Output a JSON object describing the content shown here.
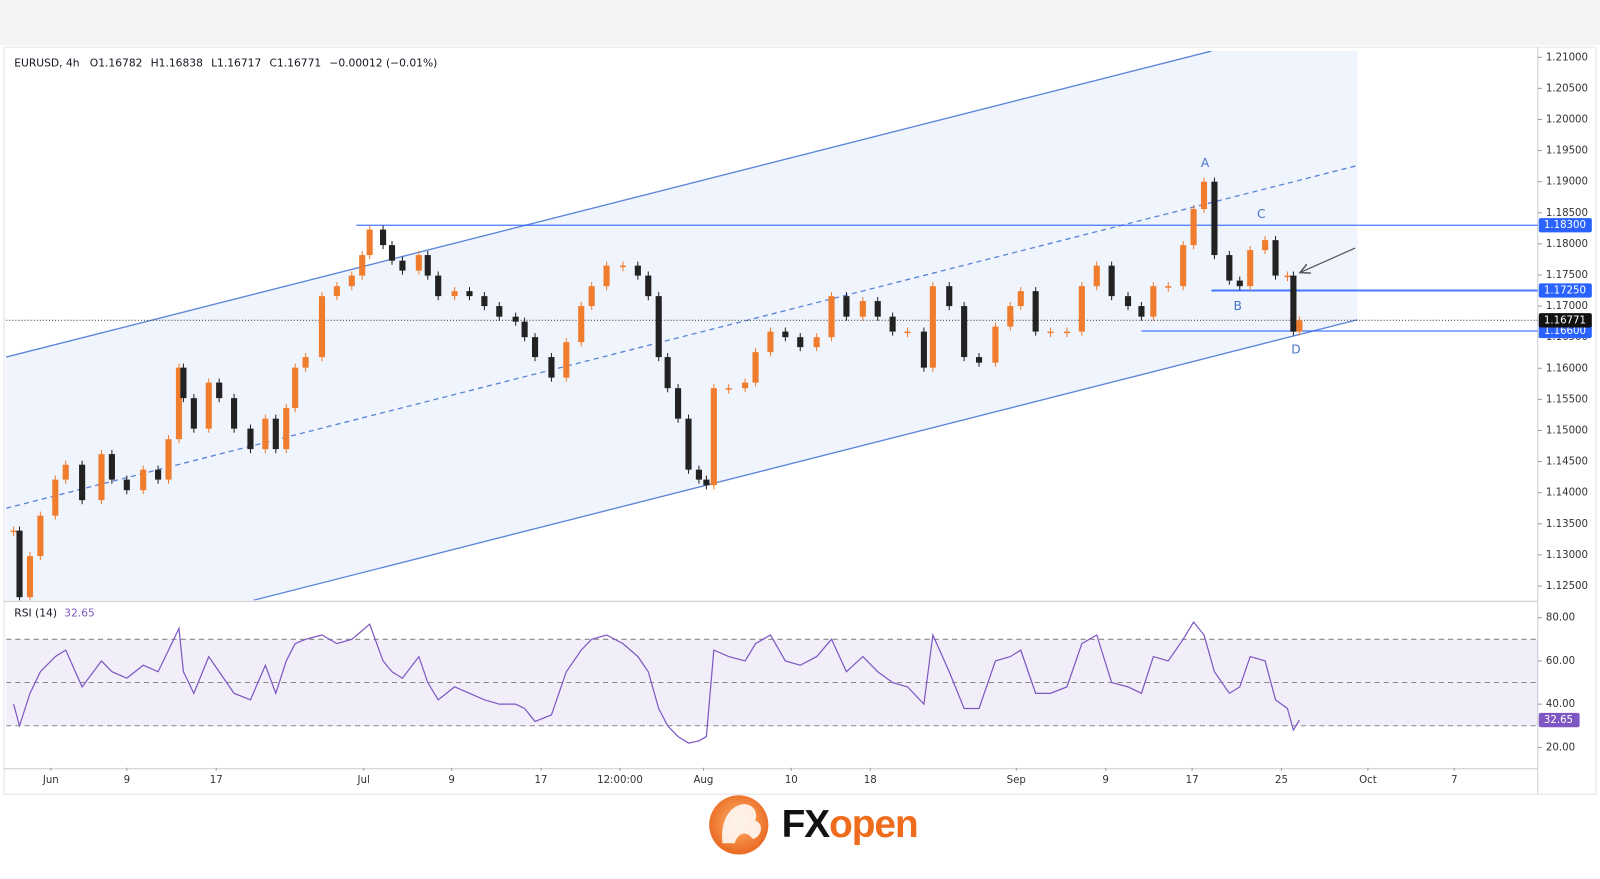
{
  "chart_data": [
    {
      "type": "candlestick",
      "symbol": "EURUSD, 4h",
      "legend_items": [
        "O1.16782",
        "H1.16838",
        "L1.16717",
        "C1.16771",
        "−0.00012 (−0.01%)"
      ],
      "up_color": "#ef7d2d",
      "down_color": "#222222",
      "xlim": [
        -3.0,
        99.8
      ],
      "ylim": [
        1.1227,
        1.211
      ],
      "yticks": [
        {
          "value": 1.125,
          "label": "1.12500"
        },
        {
          "value": 1.13,
          "label": "1.13000"
        },
        {
          "value": 1.135,
          "label": "1.13500"
        },
        {
          "value": 1.14,
          "label": "1.14000"
        },
        {
          "value": 1.145,
          "label": "1.14500"
        },
        {
          "value": 1.15,
          "label": "1.15000"
        },
        {
          "value": 1.155,
          "label": "1.15500"
        },
        {
          "value": 1.16,
          "label": "1.16000"
        },
        {
          "value": 1.165,
          "label": "1.16500"
        },
        {
          "value": 1.17,
          "label": "1.17000"
        },
        {
          "value": 1.175,
          "label": "1.17500"
        },
        {
          "value": 1.18,
          "label": "1.18000"
        },
        {
          "value": 1.185,
          "label": "1.18500"
        },
        {
          "value": 1.19,
          "label": "1.19000"
        },
        {
          "value": 1.195,
          "label": "1.19500"
        },
        {
          "value": 1.2,
          "label": "1.20000"
        },
        {
          "value": 1.205,
          "label": "1.20500"
        },
        {
          "value": 1.21,
          "label": "1.21000"
        }
      ],
      "x": [
        -2.5,
        -2.1,
        -1.4,
        -0.7,
        0.3,
        1.0,
        2.1,
        3.4,
        4.1,
        5.1,
        6.2,
        7.2,
        7.9,
        8.6,
        8.9,
        9.6,
        10.6,
        11.3,
        12.3,
        13.4,
        14.4,
        15.1,
        15.8,
        16.4,
        17.1,
        18.2,
        19.2,
        20.2,
        20.9,
        21.4,
        22.3,
        22.9,
        23.6,
        24.7,
        25.3,
        26.0,
        27.1,
        28.1,
        29.1,
        30.1,
        31.2,
        31.8,
        32.5,
        33.6,
        34.6,
        35.6,
        36.3,
        37.3,
        38.4,
        39.4,
        40.1,
        40.8,
        41.4,
        42.1,
        42.8,
        43.5,
        44.0,
        44.5,
        45.5,
        46.6,
        47.3,
        48.3,
        49.3,
        50.3,
        51.4,
        52.4,
        53.4,
        54.5,
        55.5,
        56.5,
        57.5,
        58.6,
        59.2,
        60.3,
        61.3,
        62.3,
        63.4,
        64.4,
        65.1,
        66.1,
        67.1,
        68.2,
        69.2,
        70.2,
        71.2,
        72.3,
        73.2,
        74.0,
        75.0,
        76.0,
        76.7,
        77.4,
        78.1,
        79.1,
        79.8,
        80.5,
        81.5,
        82.2,
        83.0,
        83.4,
        83.8
      ],
      "values": [
        1.1339,
        1.1232,
        1.1298,
        1.1363,
        1.1421,
        1.1445,
        1.1388,
        1.1462,
        1.1421,
        1.1404,
        1.1437,
        1.1421,
        1.1486,
        1.1601,
        1.1552,
        1.1503,
        1.1577,
        1.1552,
        1.1503,
        1.147,
        1.1519,
        1.147,
        1.1536,
        1.1601,
        1.1618,
        1.1716,
        1.1732,
        1.1749,
        1.1782,
        1.1823,
        1.1798,
        1.1773,
        1.1757,
        1.1782,
        1.1749,
        1.1716,
        1.1724,
        1.1716,
        1.17,
        1.1683,
        1.1675,
        1.165,
        1.1618,
        1.1585,
        1.1642,
        1.17,
        1.1732,
        1.1765,
        1.1765,
        1.1749,
        1.1716,
        1.1618,
        1.1568,
        1.1519,
        1.1437,
        1.1421,
        1.1412,
        1.1568,
        1.1568,
        1.1577,
        1.1626,
        1.1659,
        1.165,
        1.1634,
        1.165,
        1.1716,
        1.1683,
        1.1708,
        1.1683,
        1.1659,
        1.1659,
        1.1601,
        1.1732,
        1.17,
        1.1618,
        1.1609,
        1.1667,
        1.17,
        1.1724,
        1.1659,
        1.1659,
        1.1659,
        1.1732,
        1.1765,
        1.1716,
        1.17,
        1.1683,
        1.1732,
        1.1732,
        1.1798,
        1.1856,
        1.19,
        1.1782,
        1.1741,
        1.1732,
        1.179,
        1.1806,
        1.1749,
        1.1749,
        1.1659,
        1.1677
      ],
      "channel": {
        "upper": {
          "x": [
            -3.0,
            77.9
          ],
          "y": [
            1.1618,
            1.211
          ]
        },
        "middle": {
          "x": [
            -3.0,
            87.7
          ],
          "y": [
            1.1375,
            1.1926
          ]
        },
        "lower": {
          "x": [
            13.6,
            87.7
          ],
          "y": [
            1.1227,
            1.1678
          ]
        }
      },
      "channel_color": "#5b85d9",
      "levels": [
        {
          "value": 1.183,
          "label": "1.18300",
          "from": 20.5
        },
        {
          "value": 1.1725,
          "label": "1.17250",
          "from": 77.9
        },
        {
          "value": 1.166,
          "label": "1.16600",
          "from": 73.2
        }
      ],
      "level_color": "#2962ff",
      "last_price": {
        "value": 1.16771,
        "label": "1.16771"
      },
      "wave_labels": [
        "A",
        "B",
        "C",
        "D"
      ]
    },
    {
      "type": "line",
      "title": "RSI (14)",
      "value": 32.65,
      "color": "#7e57c2",
      "ylim": [
        10.6,
        87.1
      ],
      "yticks": [
        {
          "value": 20,
          "label": "20.00"
        },
        {
          "value": 40,
          "label": "40.00"
        },
        {
          "value": 60,
          "label": "60.00"
        },
        {
          "value": 80,
          "label": "80.00"
        }
      ],
      "band": [
        30,
        70
      ],
      "midline": 50,
      "values": [
        40,
        30,
        45,
        55,
        62,
        65,
        48,
        60,
        55,
        52,
        58,
        55,
        65,
        75,
        55,
        45,
        62,
        55,
        45,
        42,
        58,
        45,
        60,
        68,
        70,
        72,
        68,
        70,
        74,
        77,
        60,
        55,
        52,
        62,
        50,
        42,
        48,
        45,
        42,
        40,
        40,
        38,
        32,
        35,
        55,
        65,
        70,
        72,
        68,
        62,
        55,
        38,
        30,
        25,
        22,
        23,
        25,
        65,
        62,
        60,
        68,
        72,
        60,
        58,
        62,
        70,
        55,
        62,
        55,
        50,
        48,
        40,
        72,
        55,
        38,
        38,
        60,
        62,
        65,
        45,
        45,
        48,
        68,
        72,
        50,
        48,
        45,
        62,
        60,
        70,
        78,
        72,
        55,
        45,
        48,
        62,
        60,
        42,
        38,
        28,
        32.65
      ],
      "xticks": [
        {
          "value": 0,
          "label": "Jun"
        },
        {
          "value": 5.1,
          "label": "9"
        },
        {
          "value": 11.1,
          "label": "17"
        },
        {
          "value": 21.0,
          "label": "Jul"
        },
        {
          "value": 26.9,
          "label": "9"
        },
        {
          "value": 32.9,
          "label": "17"
        },
        {
          "value": 38.2,
          "label": "12:00:00"
        },
        {
          "value": 43.8,
          "label": "Aug"
        },
        {
          "value": 49.7,
          "label": "10"
        },
        {
          "value": 55.0,
          "label": "18"
        },
        {
          "value": 64.8,
          "label": "Sep"
        },
        {
          "value": 70.8,
          "label": "9"
        },
        {
          "value": 76.6,
          "label": "17"
        },
        {
          "value": 82.6,
          "label": "25"
        },
        {
          "value": 88.4,
          "label": "Oct"
        },
        {
          "value": 94.2,
          "label": "7"
        }
      ]
    }
  ],
  "brand": [
    "FX",
    "open"
  ]
}
